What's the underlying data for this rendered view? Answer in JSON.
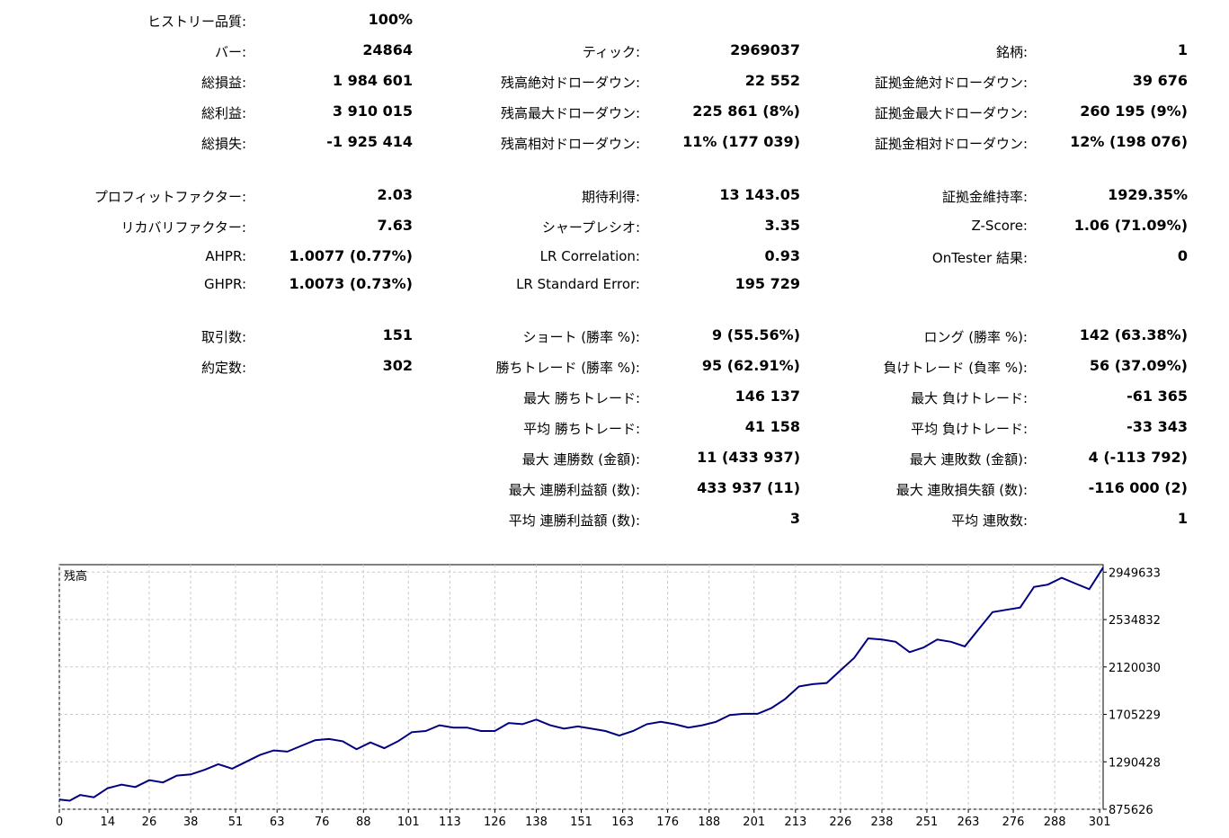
{
  "stats": {
    "history_quality": {
      "label": "ヒストリー品質:",
      "value": "100%"
    },
    "bars": {
      "label": "バー:",
      "value": "24864"
    },
    "ticks": {
      "label": "ティック:",
      "value": "2969037"
    },
    "symbols": {
      "label": "銘柄:",
      "value": "1"
    },
    "total_net_profit": {
      "label": "総損益:",
      "value": "1 984 601"
    },
    "balance_dd_absolute": {
      "label": "残高絶対ドローダウン:",
      "value": "22 552"
    },
    "equity_dd_absolute": {
      "label": "証拠金絶対ドローダウン:",
      "value": "39 676"
    },
    "gross_profit": {
      "label": "総利益:",
      "value": "3 910 015"
    },
    "balance_dd_maximal": {
      "label": "残高最大ドローダウン:",
      "value": "225 861 (8%)"
    },
    "equity_dd_maximal": {
      "label": "証拠金最大ドローダウン:",
      "value": "260 195 (9%)"
    },
    "gross_loss": {
      "label": "総損失:",
      "value": "-1 925 414"
    },
    "balance_dd_relative": {
      "label": "残高相対ドローダウン:",
      "value": "11% (177 039)"
    },
    "equity_dd_relative": {
      "label": "証拠金相対ドローダウン:",
      "value": "12% (198 076)"
    },
    "profit_factor": {
      "label": "プロフィットファクター:",
      "value": "2.03"
    },
    "expected_payoff": {
      "label": "期待利得:",
      "value": "13 143.05"
    },
    "margin_level": {
      "label": "証拠金維持率:",
      "value": "1929.35%"
    },
    "recovery_factor": {
      "label": "リカバリファクター:",
      "value": "7.63"
    },
    "sharpe_ratio": {
      "label": "シャープレシオ:",
      "value": "3.35"
    },
    "z_score": {
      "label": "Z-Score:",
      "value": "1.06 (71.09%)"
    },
    "ahpr": {
      "label": "AHPR:",
      "value": "1.0077 (0.77%)"
    },
    "lr_correlation": {
      "label": "LR Correlation:",
      "value": "0.93"
    },
    "ontester_result": {
      "label": "OnTester 結果:",
      "value": "0"
    },
    "ghpr": {
      "label": "GHPR:",
      "value": "1.0073 (0.73%)"
    },
    "lr_standard_error": {
      "label": "LR Standard Error:",
      "value": "195 729"
    },
    "total_trades": {
      "label": "取引数:",
      "value": "151"
    },
    "short_trades": {
      "label": "ショート (勝率 %):",
      "value": "9 (55.56%)"
    },
    "long_trades": {
      "label": "ロング (勝率 %):",
      "value": "142 (63.38%)"
    },
    "total_deals": {
      "label": "約定数:",
      "value": "302"
    },
    "profit_trades": {
      "label": "勝ちトレード (勝率 %):",
      "value": "95 (62.91%)"
    },
    "loss_trades": {
      "label": "負けトレード (負率 %):",
      "value": "56 (37.09%)"
    },
    "largest_profit_trade": {
      "label": "最大 勝ちトレード:",
      "value": "146 137"
    },
    "largest_loss_trade": {
      "label": "最大 負けトレード:",
      "value": "-61 365"
    },
    "average_profit_trade": {
      "label": "平均 勝ちトレード:",
      "value": "41 158"
    },
    "average_loss_trade": {
      "label": "平均 負けトレード:",
      "value": "-33 343"
    },
    "max_consecutive_wins": {
      "label": "最大 連勝数 (金額):",
      "value": "11 (433 937)"
    },
    "max_consecutive_losses": {
      "label": "最大 連敗数 (金額):",
      "value": "4 (-113 792)"
    },
    "max_consecutive_profit": {
      "label": "最大 連勝利益額 (数):",
      "value": "433 937 (11)"
    },
    "max_consecutive_loss": {
      "label": "最大 連敗損失額 (数):",
      "value": "-116 000 (2)"
    },
    "avg_consecutive_wins": {
      "label": "平均 連勝利益額 (数):",
      "value": "3"
    },
    "avg_consecutive_losses": {
      "label": "平均 連敗数:",
      "value": "1"
    }
  },
  "chart_data": {
    "type": "line",
    "title": "残高",
    "xlabel": "",
    "ylabel": "",
    "x_ticks": [
      0,
      14,
      26,
      38,
      51,
      63,
      76,
      88,
      101,
      113,
      126,
      138,
      151,
      163,
      176,
      188,
      201,
      213,
      226,
      238,
      251,
      263,
      276,
      288,
      301
    ],
    "y_ticks": [
      875626,
      1290428,
      1705229,
      2120030,
      2534832,
      2949633
    ],
    "ylim": [
      875626,
      3015000
    ],
    "xlim": [
      0,
      302
    ],
    "grid": true,
    "color": "#000080",
    "series": [
      {
        "x": [
          0,
          3,
          6,
          10,
          14,
          18,
          22,
          26,
          30,
          34,
          38,
          42,
          46,
          50,
          54,
          58,
          62,
          66,
          70,
          74,
          78,
          82,
          86,
          90,
          94,
          98,
          102,
          106,
          110,
          114,
          118,
          122,
          126,
          130,
          134,
          138,
          142,
          146,
          150,
          154,
          158,
          162,
          166,
          170,
          174,
          178,
          182,
          186,
          190,
          194,
          198,
          202,
          206,
          210,
          214,
          218,
          222,
          226,
          230,
          234,
          238,
          242,
          246,
          250,
          254,
          258,
          262,
          266,
          270,
          274,
          278,
          282,
          286,
          290,
          294,
          298,
          302
        ],
        "y": [
          960000,
          950000,
          1000000,
          980000,
          1060000,
          1090000,
          1070000,
          1130000,
          1110000,
          1170000,
          1180000,
          1220000,
          1270000,
          1230000,
          1290000,
          1350000,
          1390000,
          1380000,
          1430000,
          1480000,
          1490000,
          1470000,
          1400000,
          1460000,
          1410000,
          1470000,
          1550000,
          1560000,
          1610000,
          1590000,
          1590000,
          1560000,
          1560000,
          1630000,
          1620000,
          1660000,
          1610000,
          1580000,
          1600000,
          1580000,
          1560000,
          1520000,
          1560000,
          1620000,
          1640000,
          1620000,
          1590000,
          1610000,
          1640000,
          1700000,
          1710000,
          1710000,
          1760000,
          1840000,
          1950000,
          1970000,
          1980000,
          2090000,
          2200000,
          2370000,
          2360000,
          2340000,
          2250000,
          2290000,
          2360000,
          2340000,
          2300000,
          2450000,
          2600000,
          2620000,
          2640000,
          2820000,
          2840000,
          2900000,
          2850000,
          2800000,
          2990000
        ]
      }
    ]
  }
}
